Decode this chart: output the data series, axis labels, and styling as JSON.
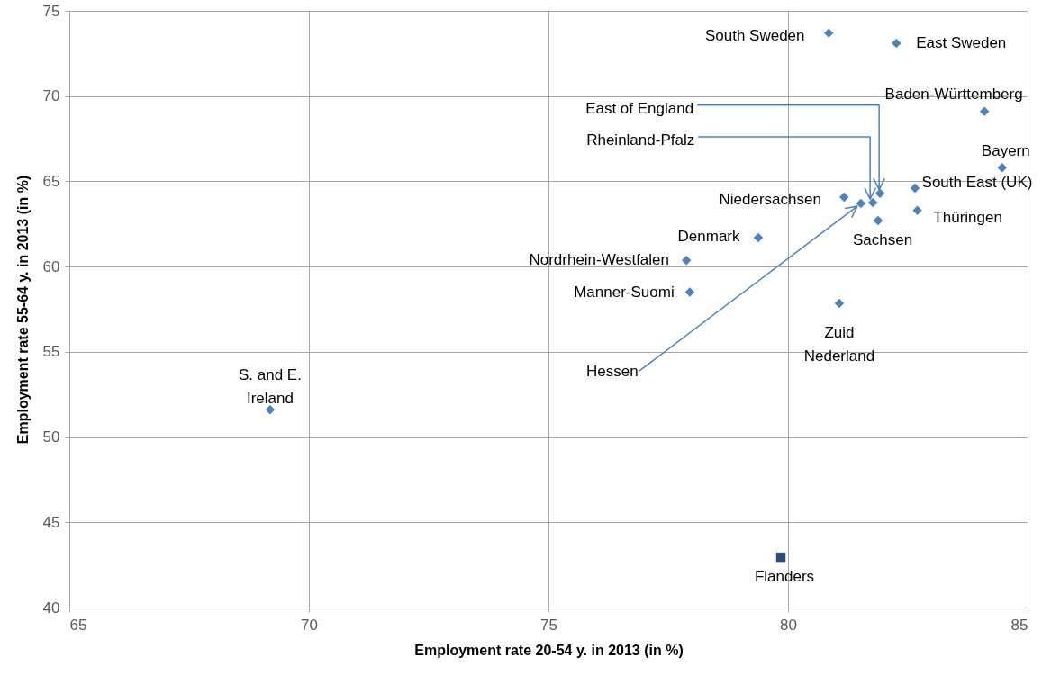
{
  "chart_data": {
    "type": "scatter",
    "xlabel": "Employment rate 20-54 y. in 2013 (in %)",
    "ylabel": "Employment rate 55-64 y. in 2013 (in %)",
    "xlim": [
      65,
      85
    ],
    "xticks": [
      65,
      70,
      75,
      80,
      85
    ],
    "ylim": [
      40,
      75
    ],
    "yticks": [
      40,
      45,
      50,
      55,
      60,
      65,
      70,
      75
    ],
    "grid": true,
    "series": [
      {
        "marker": "diamond",
        "color": "#4f81bd",
        "x": [
          80.85,
          82.26,
          84.1,
          84.47,
          82.65,
          82.7,
          81.88,
          81.92,
          81.77,
          81.52,
          81.17,
          79.38,
          77.88,
          77.95,
          81.07,
          69.19
        ],
        "values": [
          73.7,
          73.1,
          69.1,
          65.8,
          64.6,
          63.3,
          62.7,
          64.3,
          63.75,
          63.7,
          64.07,
          61.7,
          60.37,
          58.5,
          57.84,
          51.6
        ]
      },
      {
        "marker": "square",
        "color": "#2c4d75",
        "x": [
          79.85
        ],
        "values": [
          42.95
        ]
      }
    ],
    "annotations": [
      {
        "text": "South Sweden",
        "x": 80.85,
        "y": 73.7
      },
      {
        "text": "East Sweden",
        "x": 82.26,
        "y": 73.1
      },
      {
        "text": "Baden-Württemberg",
        "x": 84.1,
        "y": 69.1
      },
      {
        "text": "Bayern",
        "x": 84.47,
        "y": 65.8
      },
      {
        "text": "South East (UK)",
        "x": 82.65,
        "y": 64.6
      },
      {
        "text": "Thüringen",
        "x": 82.7,
        "y": 63.3
      },
      {
        "text": "Sachsen",
        "x": 81.88,
        "y": 62.7
      },
      {
        "text": "East of England",
        "x": 81.92,
        "y": 64.3
      },
      {
        "text": "Rheinland-Pfalz",
        "x": 81.77,
        "y": 63.75
      },
      {
        "text": "Hessen",
        "x": 81.52,
        "y": 63.7
      },
      {
        "text": "Niedersachsen",
        "x": 81.17,
        "y": 64.07
      },
      {
        "text": "Denmark",
        "x": 79.38,
        "y": 61.7
      },
      {
        "text": "Nordrhein-Westfalen",
        "x": 77.88,
        "y": 60.37
      },
      {
        "text": "Manner-Suomi",
        "x": 77.95,
        "y": 58.5
      },
      {
        "text": "Zuid Nederland",
        "x": 81.07,
        "y": 57.84
      },
      {
        "text": "S. and E. Ireland",
        "x": 69.19,
        "y": 51.6
      },
      {
        "text": "Flanders",
        "x": 79.85,
        "y": 42.95
      }
    ]
  }
}
